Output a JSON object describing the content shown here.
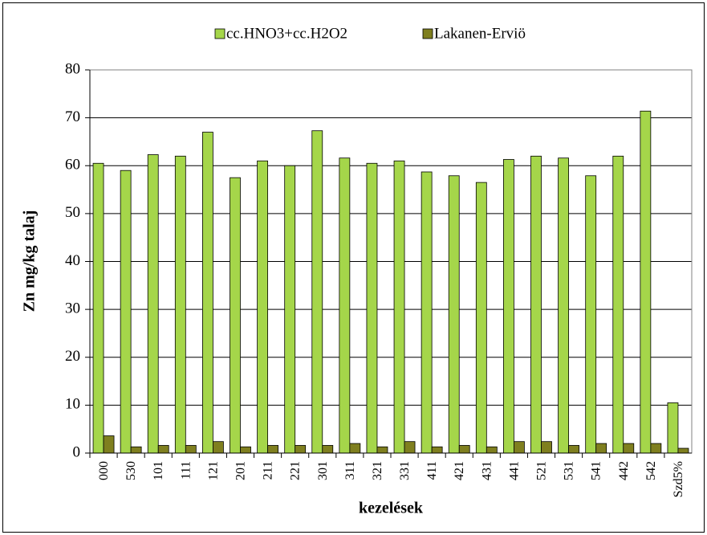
{
  "chart_data": {
    "type": "bar",
    "categories": [
      "000",
      "530",
      "101",
      "111",
      "121",
      "201",
      "211",
      "221",
      "301",
      "311",
      "321",
      "331",
      "411",
      "421",
      "431",
      "441",
      "521",
      "531",
      "541",
      "442",
      "542",
      "Szd5%"
    ],
    "series": [
      {
        "name": "cc.HNO3+cc.H2O2",
        "color": "#a5d64a",
        "values": [
          60.5,
          59,
          62.3,
          62,
          67,
          57.5,
          61,
          60,
          67.3,
          61.6,
          60.5,
          61,
          58.7,
          57.9,
          56.5,
          61.3,
          62,
          61.6,
          57.9,
          62,
          71.4,
          10.5
        ]
      },
      {
        "name": "Lakanen-Erviö",
        "color": "#7f7f1f",
        "values": [
          3.6,
          1.3,
          1.6,
          1.6,
          2.4,
          1.3,
          1.6,
          1.6,
          1.6,
          2,
          1.3,
          2.4,
          1.3,
          1.6,
          1.3,
          2.4,
          2.4,
          1.6,
          2,
          2,
          2,
          1.0
        ]
      }
    ],
    "ylim": [
      0,
      80
    ],
    "yticks": [
      0,
      10,
      20,
      30,
      40,
      50,
      60,
      70,
      80
    ],
    "grid": true,
    "ylabel": "Zn mg/kg talaj",
    "xlabel": "kezelések",
    "legend": "top"
  }
}
